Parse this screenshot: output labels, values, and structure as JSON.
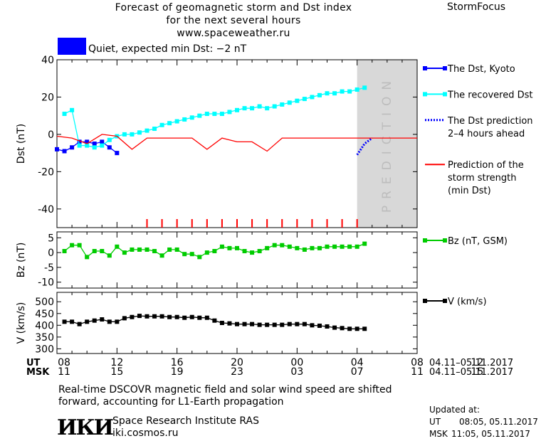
{
  "header": {
    "title_line1": "Forecast of geomagnetic storm and Dst index",
    "title_line2": "for the next several hours",
    "url": "www.spaceweather.ru",
    "brand": "StormFocus",
    "status_text": "Quiet, expected min Dst: −2 nT",
    "status_color": "#0000ff"
  },
  "footer": {
    "note_line1": "Real-time DSCOVR magnetic field and solar wind speed are shifted",
    "note_line2": "forward, accounting for L1-Earth propagation",
    "logo_text": "ИКИ",
    "institute": "Space Research Institute RAS",
    "site": "iki.cosmos.ru",
    "updated_label": "Updated at:",
    "updated_ut_label": "UT",
    "updated_ut": "08:05, 05.11.2017",
    "updated_msk_label": "MSK",
    "updated_msk": "11:05, 05.11.2017"
  },
  "chart_data": [
    {
      "type": "line",
      "ylabel": "Dst (nT)",
      "ylim": [
        -50,
        40
      ],
      "yticks": [
        40,
        20,
        0,
        -20,
        -40
      ],
      "xlim": [
        0,
        24
      ],
      "prediction_band": {
        "x": [
          20,
          24
        ],
        "label": "PREDICTION",
        "color": "#d8d8d8"
      },
      "storm_markers_x": [
        6,
        7,
        8,
        9,
        10,
        11,
        12,
        13,
        14,
        15,
        16,
        17,
        18,
        19,
        20
      ],
      "series": [
        {
          "name": "The Dst, Kyoto",
          "color": "#0000ff",
          "marker": "square",
          "x": [
            0,
            0.5,
            1,
            1.5,
            2,
            2.5,
            3,
            3.5,
            4
          ],
          "y": [
            -8,
            -9,
            -7,
            -4,
            -4,
            -5,
            -4,
            -7,
            -10
          ]
        },
        {
          "name": "The recovered Dst",
          "color": "#00ffff",
          "marker": "square",
          "x": [
            0.5,
            1,
            1.5,
            2,
            2.5,
            3,
            3.5,
            4,
            4.5,
            5,
            5.5,
            6,
            6.5,
            7,
            7.5,
            8,
            8.5,
            9,
            9.5,
            10,
            10.5,
            11,
            11.5,
            12,
            12.5,
            13,
            13.5,
            14,
            14.5,
            15,
            15.5,
            16,
            16.5,
            17,
            17.5,
            18,
            18.5,
            19,
            19.5,
            20,
            20.5
          ],
          "y": [
            11,
            13,
            -6,
            -6,
            -7,
            -6,
            -3,
            -1,
            0,
            0,
            1,
            2,
            3,
            5,
            6,
            7,
            8,
            9,
            10,
            11,
            11,
            11,
            12,
            13,
            14,
            14,
            15,
            14,
            15,
            16,
            17,
            18,
            19,
            20,
            21,
            22,
            22,
            23,
            23,
            24,
            25
          ]
        },
        {
          "name": "The Dst prediction 2–4 hours ahead",
          "color": "#0000ff",
          "dotted": true,
          "x": [
            20,
            20.5,
            21
          ],
          "y": [
            -11,
            -5,
            -2
          ]
        },
        {
          "name": "Prediction of the storm strength (min Dst)",
          "color": "#ff0000",
          "x": [
            0,
            1,
            2,
            3,
            4,
            5,
            6,
            7,
            8,
            9,
            10,
            11,
            12,
            13,
            14,
            15,
            16,
            17,
            18,
            19,
            20,
            21,
            22,
            23,
            24
          ],
          "y": [
            -1,
            -2,
            -5,
            0,
            -1,
            -8,
            -2,
            -2,
            -2,
            -2,
            -8,
            -2,
            -4,
            -4,
            -9,
            -2,
            -2,
            -2,
            -2,
            -2,
            -2,
            -2,
            -2,
            -2,
            -2
          ]
        }
      ]
    },
    {
      "type": "line",
      "ylabel": "Bz (nT)",
      "ylim": [
        -12,
        7
      ],
      "yticks": [
        5,
        0,
        -5,
        -10
      ],
      "series": [
        {
          "name": "Bz (nT, GSM)",
          "color": "#00cc00",
          "marker": "square",
          "x": [
            0.5,
            1,
            1.5,
            2,
            2.5,
            3,
            3.5,
            4,
            4.5,
            5,
            5.5,
            6,
            6.5,
            7,
            7.5,
            8,
            8.5,
            9,
            9.5,
            10,
            10.5,
            11,
            11.5,
            12,
            12.5,
            13,
            13.5,
            14,
            14.5,
            15,
            15.5,
            16,
            16.5,
            17,
            17.5,
            18,
            18.5,
            19,
            19.5,
            20,
            20.5
          ],
          "y": [
            0.5,
            2.5,
            2.5,
            -1.5,
            0.5,
            0.5,
            -1,
            2,
            0,
            1,
            1,
            1,
            0.5,
            -1,
            1,
            1,
            -0.5,
            -0.5,
            -1.5,
            0,
            0.5,
            2,
            1.5,
            1.5,
            0.5,
            0,
            0.5,
            1.5,
            2.5,
            2.5,
            2,
            1.5,
            1,
            1.5,
            1.5,
            2,
            2,
            2,
            2,
            2,
            3
          ]
        }
      ]
    },
    {
      "type": "line",
      "ylabel": "V (km/s)",
      "ylim": [
        280,
        540
      ],
      "yticks": [
        500,
        450,
        400,
        350,
        300
      ],
      "series": [
        {
          "name": "V (km/s)",
          "color": "#000000",
          "marker": "square",
          "x": [
            0.5,
            1,
            1.5,
            2,
            2.5,
            3,
            3.5,
            4,
            4.5,
            5,
            5.5,
            6,
            6.5,
            7,
            7.5,
            8,
            8.5,
            9,
            9.5,
            10,
            10.5,
            11,
            11.5,
            12,
            12.5,
            13,
            13.5,
            14,
            14.5,
            15,
            15.5,
            16,
            16.5,
            17,
            17.5,
            18,
            18.5,
            19,
            19.5,
            20,
            20.5
          ],
          "y": [
            415,
            415,
            405,
            415,
            420,
            425,
            415,
            415,
            430,
            435,
            440,
            438,
            438,
            438,
            435,
            435,
            432,
            435,
            432,
            432,
            420,
            410,
            408,
            405,
            405,
            405,
            402,
            402,
            402,
            402,
            405,
            405,
            405,
            400,
            398,
            395,
            390,
            388,
            385,
            385,
            385
          ]
        }
      ]
    }
  ],
  "x_axis": {
    "ut_label": "UT",
    "msk_label": "MSK",
    "ut_ticks": [
      "08",
      "12",
      "16",
      "20",
      "00",
      "04",
      "08",
      "12"
    ],
    "msk_ticks": [
      "11",
      "15",
      "19",
      "23",
      "03",
      "07",
      "11",
      "15"
    ],
    "date_range_ut": "04.11–05.11.2017",
    "date_range_msk": "04.11–05.11.2017"
  }
}
